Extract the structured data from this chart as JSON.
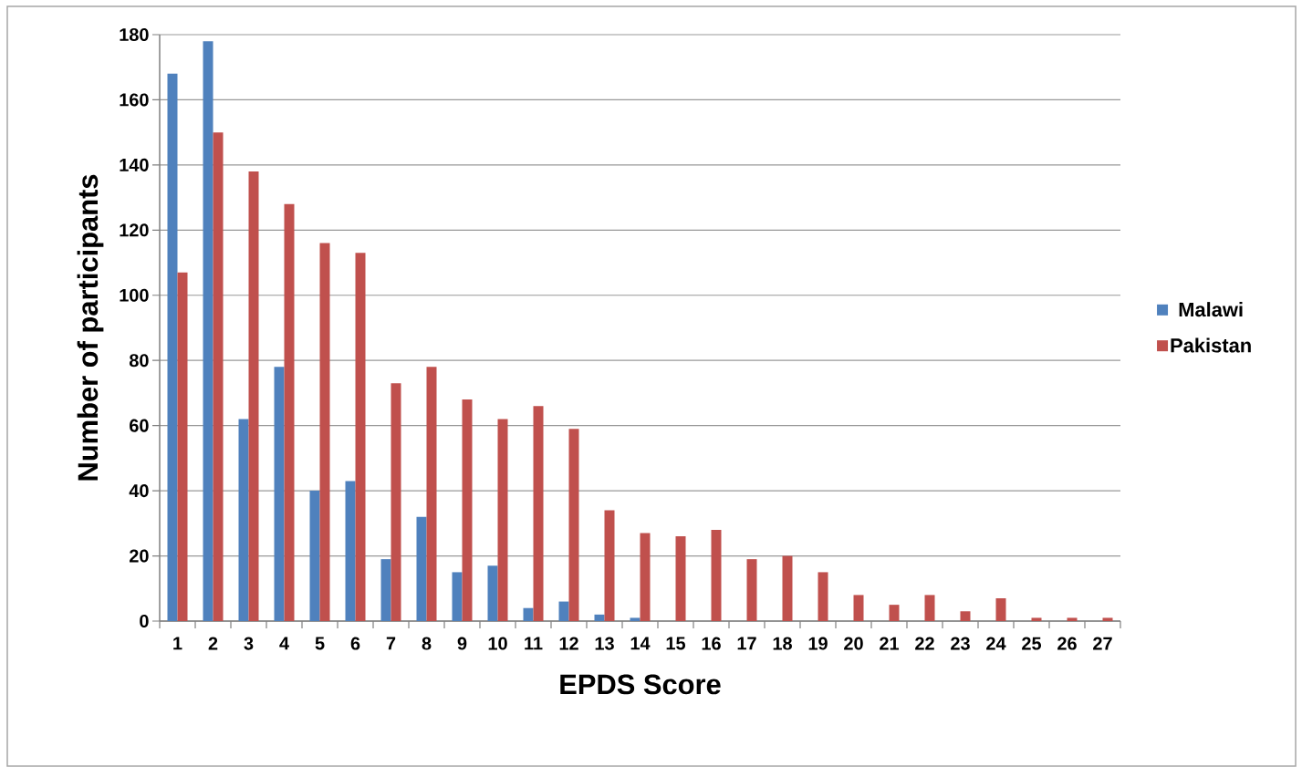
{
  "chart_data": {
    "type": "bar",
    "xlabel": "EPDS Score",
    "ylabel": "Number of participants",
    "categories": [
      "1",
      "2",
      "3",
      "4",
      "5",
      "6",
      "7",
      "8",
      "9",
      "10",
      "11",
      "12",
      "13",
      "14",
      "15",
      "16",
      "17",
      "18",
      "19",
      "20",
      "21",
      "22",
      "23",
      "24",
      "25",
      "26",
      "27"
    ],
    "series": [
      {
        "name": "Malawi",
        "color": "#4f81bd",
        "values": [
          168,
          178,
          62,
          78,
          40,
          43,
          19,
          32,
          15,
          17,
          4,
          6,
          2,
          1,
          0,
          0,
          0,
          0,
          0,
          0,
          0,
          0,
          0,
          0,
          0,
          0,
          0
        ]
      },
      {
        "name": "Pakistan",
        "color": "#c0504d",
        "values": [
          107,
          150,
          138,
          128,
          116,
          113,
          73,
          78,
          68,
          62,
          66,
          59,
          34,
          27,
          26,
          28,
          19,
          20,
          15,
          8,
          5,
          8,
          3,
          7,
          1,
          1,
          1
        ]
      }
    ],
    "ylim": [
      0,
      180
    ],
    "yticks": [
      0,
      20,
      40,
      60,
      80,
      100,
      120,
      140,
      160,
      180
    ],
    "grid": "y",
    "legend": "right"
  }
}
